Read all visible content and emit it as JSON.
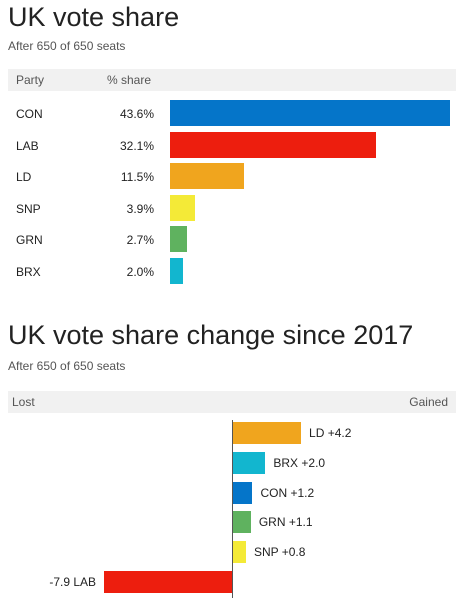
{
  "chart_data": [
    {
      "type": "bar",
      "title": "UK vote share",
      "subtitle": "After 650 of 650 seats",
      "header": {
        "party": "Party",
        "share": "% share"
      },
      "categories": [
        "CON",
        "LAB",
        "LD",
        "SNP",
        "GRN",
        "BRX"
      ],
      "values": [
        43.6,
        32.1,
        11.5,
        3.9,
        2.7,
        2.0
      ],
      "value_labels": [
        "43.6%",
        "32.1%",
        "11.5%",
        "3.9%",
        "2.7%",
        "2.0%"
      ],
      "colors": [
        "#0575c9",
        "#ed1e0e",
        "#f0a51e",
        "#f4ea37",
        "#5fb25f",
        "#12b6cf"
      ],
      "xlim": [
        0,
        43.6
      ],
      "orientation": "horizontal"
    },
    {
      "type": "bar",
      "title": "UK vote share change since 2017",
      "subtitle": "After 650 of 650 seats",
      "header": {
        "lost": "Lost",
        "gained": "Gained"
      },
      "categories": [
        "LD",
        "BRX",
        "CON",
        "GRN",
        "SNP",
        "LAB"
      ],
      "values": [
        4.2,
        2.0,
        1.2,
        1.1,
        0.8,
        -7.9
      ],
      "value_labels": [
        "+4.2",
        "+2.0",
        "+1.2",
        "+1.1",
        "+0.8",
        "-7.9"
      ],
      "colors": [
        "#f0a51e",
        "#12b6cf",
        "#0575c9",
        "#5fb25f",
        "#f4ea37",
        "#ed1e0e"
      ],
      "orientation": "horizontal"
    }
  ]
}
